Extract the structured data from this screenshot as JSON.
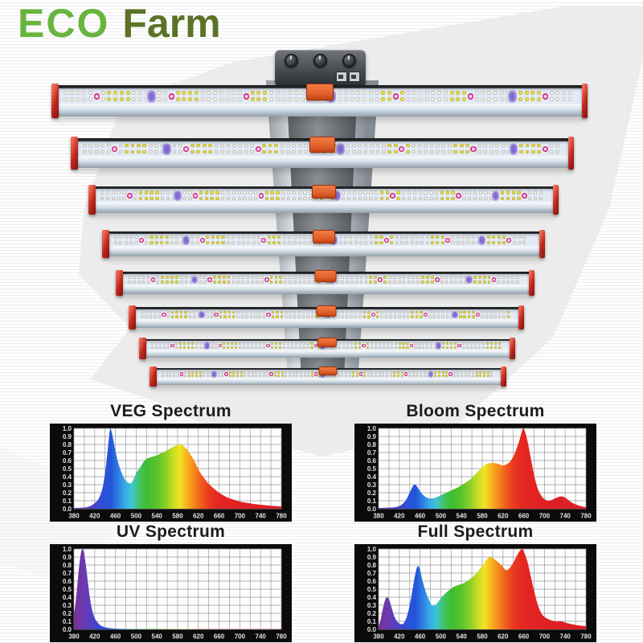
{
  "logo": {
    "eco": "ECO",
    "farm": "Farm",
    "eco_color": "#69b43e",
    "farm_color": "#5c7327"
  },
  "fixture": {
    "bar_count": 8,
    "colors": {
      "end_cap": "#c8342a",
      "connector": "#e2602a",
      "strip_background": "#e3eaf4",
      "led_white": "#faf9f3",
      "led_warm": "#e9e257",
      "led_red": "#e02e89",
      "led_uv": "#7f68cf",
      "heatsink_dark": "#2b2d30",
      "body_silver": "#c9d4de"
    }
  },
  "spectrum_colors": [
    [
      380,
      "#7b2f94"
    ],
    [
      400,
      "#6a3ab2"
    ],
    [
      418,
      "#4a41c6"
    ],
    [
      438,
      "#2a50d8"
    ],
    [
      452,
      "#2356d8"
    ],
    [
      465,
      "#2e7de2"
    ],
    [
      478,
      "#3aa8e8"
    ],
    [
      492,
      "#3cc6d2"
    ],
    [
      505,
      "#44c46a"
    ],
    [
      520,
      "#3fbc2f"
    ],
    [
      540,
      "#58c42c"
    ],
    [
      558,
      "#8fd028"
    ],
    [
      572,
      "#c8de24"
    ],
    [
      585,
      "#f2e322"
    ],
    [
      598,
      "#f6b11e"
    ],
    [
      612,
      "#f6871c"
    ],
    [
      626,
      "#f05a1e"
    ],
    [
      640,
      "#ea3a20"
    ],
    [
      658,
      "#e42722"
    ],
    [
      700,
      "#df2024"
    ],
    [
      780,
      "#da1f26"
    ]
  ],
  "chart_data": [
    {
      "type": "area",
      "title": "VEG Spectrum",
      "xlim": [
        380,
        780
      ],
      "ylim": [
        0,
        1.0
      ],
      "xticks": [
        380,
        420,
        460,
        500,
        540,
        580,
        620,
        660,
        700,
        740,
        780
      ],
      "yticks": [
        0.0,
        0.1,
        0.2,
        0.3,
        0.4,
        0.5,
        0.6,
        0.7,
        0.8,
        0.9,
        1.0
      ],
      "grid": true,
      "points": [
        [
          380,
          0.01
        ],
        [
          398,
          0.015
        ],
        [
          410,
          0.03
        ],
        [
          420,
          0.07
        ],
        [
          428,
          0.13
        ],
        [
          436,
          0.28
        ],
        [
          442,
          0.55
        ],
        [
          447,
          0.85
        ],
        [
          450,
          1.0
        ],
        [
          453,
          0.95
        ],
        [
          457,
          0.82
        ],
        [
          462,
          0.66
        ],
        [
          468,
          0.52
        ],
        [
          474,
          0.42
        ],
        [
          480,
          0.35
        ],
        [
          486,
          0.32
        ],
        [
          492,
          0.33
        ],
        [
          500,
          0.44
        ],
        [
          508,
          0.52
        ],
        [
          514,
          0.58
        ],
        [
          520,
          0.62
        ],
        [
          528,
          0.64
        ],
        [
          538,
          0.66
        ],
        [
          548,
          0.69
        ],
        [
          558,
          0.72
        ],
        [
          568,
          0.76
        ],
        [
          578,
          0.79
        ],
        [
          584,
          0.8
        ],
        [
          592,
          0.78
        ],
        [
          602,
          0.7
        ],
        [
          612,
          0.6
        ],
        [
          620,
          0.49
        ],
        [
          630,
          0.39
        ],
        [
          640,
          0.31
        ],
        [
          650,
          0.25
        ],
        [
          660,
          0.2
        ],
        [
          670,
          0.16
        ],
        [
          680,
          0.13
        ],
        [
          690,
          0.11
        ],
        [
          700,
          0.09
        ],
        [
          712,
          0.075
        ],
        [
          724,
          0.062
        ],
        [
          736,
          0.052
        ],
        [
          748,
          0.045
        ],
        [
          760,
          0.038
        ],
        [
          770,
          0.033
        ],
        [
          780,
          0.03
        ]
      ]
    },
    {
      "type": "area",
      "title": "Bloom Spectrum",
      "xlim": [
        380,
        780
      ],
      "ylim": [
        0,
        1.0
      ],
      "xticks": [
        380,
        420,
        460,
        500,
        540,
        580,
        620,
        660,
        700,
        740,
        780
      ],
      "yticks": [
        0.0,
        0.1,
        0.2,
        0.3,
        0.4,
        0.5,
        0.6,
        0.7,
        0.8,
        0.9,
        1.0
      ],
      "grid": true,
      "points": [
        [
          380,
          0.01
        ],
        [
          400,
          0.015
        ],
        [
          412,
          0.02
        ],
        [
          422,
          0.04
        ],
        [
          432,
          0.1
        ],
        [
          440,
          0.2
        ],
        [
          447,
          0.29
        ],
        [
          451,
          0.3
        ],
        [
          456,
          0.26
        ],
        [
          462,
          0.2
        ],
        [
          470,
          0.15
        ],
        [
          478,
          0.13
        ],
        [
          486,
          0.13
        ],
        [
          494,
          0.15
        ],
        [
          504,
          0.18
        ],
        [
          514,
          0.21
        ],
        [
          524,
          0.24
        ],
        [
          534,
          0.27
        ],
        [
          544,
          0.31
        ],
        [
          554,
          0.35
        ],
        [
          564,
          0.41
        ],
        [
          574,
          0.48
        ],
        [
          582,
          0.53
        ],
        [
          590,
          0.56
        ],
        [
          600,
          0.57
        ],
        [
          610,
          0.56
        ],
        [
          618,
          0.54
        ],
        [
          626,
          0.55
        ],
        [
          634,
          0.59
        ],
        [
          642,
          0.68
        ],
        [
          650,
          0.82
        ],
        [
          656,
          0.95
        ],
        [
          659,
          1.0
        ],
        [
          663,
          0.95
        ],
        [
          668,
          0.82
        ],
        [
          674,
          0.62
        ],
        [
          680,
          0.42
        ],
        [
          686,
          0.27
        ],
        [
          693,
          0.17
        ],
        [
          700,
          0.12
        ],
        [
          708,
          0.1
        ],
        [
          718,
          0.12
        ],
        [
          728,
          0.15
        ],
        [
          736,
          0.15
        ],
        [
          744,
          0.12
        ],
        [
          752,
          0.08
        ],
        [
          762,
          0.05
        ],
        [
          772,
          0.03
        ],
        [
          780,
          0.02
        ]
      ]
    },
    {
      "type": "area",
      "title": "UV Spectrum",
      "xlim": [
        380,
        780
      ],
      "ylim": [
        0,
        1.0
      ],
      "xticks": [
        380,
        420,
        460,
        500,
        540,
        580,
        620,
        660,
        700,
        740,
        780
      ],
      "yticks": [
        0.0,
        0.1,
        0.2,
        0.3,
        0.4,
        0.5,
        0.6,
        0.7,
        0.8,
        0.9,
        1.0
      ],
      "grid": true,
      "points": [
        [
          380,
          0.2
        ],
        [
          383,
          0.32
        ],
        [
          386,
          0.52
        ],
        [
          390,
          0.78
        ],
        [
          393,
          0.93
        ],
        [
          396,
          1.0
        ],
        [
          399,
          0.96
        ],
        [
          403,
          0.8
        ],
        [
          407,
          0.58
        ],
        [
          411,
          0.38
        ],
        [
          415,
          0.24
        ],
        [
          420,
          0.14
        ],
        [
          425,
          0.09
        ],
        [
          430,
          0.055
        ],
        [
          436,
          0.035
        ],
        [
          442,
          0.022
        ],
        [
          450,
          0.014
        ],
        [
          460,
          0.009
        ],
        [
          475,
          0.006
        ],
        [
          495,
          0.005
        ],
        [
          520,
          0.004
        ],
        [
          560,
          0.004
        ],
        [
          600,
          0.003
        ],
        [
          650,
          0.003
        ],
        [
          700,
          0.003
        ],
        [
          740,
          0.002
        ],
        [
          780,
          0.002
        ]
      ]
    },
    {
      "type": "area",
      "title": "Full Spectrum",
      "xlim": [
        380,
        780
      ],
      "ylim": [
        0,
        1.0
      ],
      "xticks": [
        380,
        420,
        460,
        500,
        540,
        580,
        620,
        660,
        700,
        740,
        780
      ],
      "yticks": [
        0.0,
        0.1,
        0.2,
        0.3,
        0.4,
        0.5,
        0.6,
        0.7,
        0.8,
        0.9,
        1.0
      ],
      "grid": true,
      "points": [
        [
          380,
          0.04
        ],
        [
          384,
          0.12
        ],
        [
          388,
          0.25
        ],
        [
          393,
          0.37
        ],
        [
          397,
          0.4
        ],
        [
          401,
          0.36
        ],
        [
          406,
          0.25
        ],
        [
          411,
          0.15
        ],
        [
          417,
          0.09
        ],
        [
          423,
          0.065
        ],
        [
          429,
          0.08
        ],
        [
          435,
          0.17
        ],
        [
          441,
          0.33
        ],
        [
          447,
          0.55
        ],
        [
          452,
          0.72
        ],
        [
          456,
          0.79
        ],
        [
          460,
          0.74
        ],
        [
          465,
          0.6
        ],
        [
          471,
          0.47
        ],
        [
          477,
          0.37
        ],
        [
          483,
          0.3
        ],
        [
          489,
          0.3
        ],
        [
          495,
          0.34
        ],
        [
          503,
          0.41
        ],
        [
          513,
          0.47
        ],
        [
          523,
          0.52
        ],
        [
          533,
          0.55
        ],
        [
          543,
          0.57
        ],
        [
          553,
          0.61
        ],
        [
          563,
          0.66
        ],
        [
          573,
          0.73
        ],
        [
          581,
          0.8
        ],
        [
          589,
          0.87
        ],
        [
          595,
          0.9
        ],
        [
          602,
          0.88
        ],
        [
          610,
          0.84
        ],
        [
          618,
          0.79
        ],
        [
          625,
          0.74
        ],
        [
          631,
          0.75
        ],
        [
          639,
          0.82
        ],
        [
          647,
          0.92
        ],
        [
          653,
          0.98
        ],
        [
          657,
          1.0
        ],
        [
          662,
          0.94
        ],
        [
          668,
          0.82
        ],
        [
          674,
          0.65
        ],
        [
          680,
          0.48
        ],
        [
          687,
          0.31
        ],
        [
          694,
          0.2
        ],
        [
          701,
          0.15
        ],
        [
          710,
          0.12
        ],
        [
          720,
          0.1
        ],
        [
          732,
          0.1
        ],
        [
          742,
          0.08
        ],
        [
          752,
          0.065
        ],
        [
          764,
          0.05
        ],
        [
          780,
          0.04
        ]
      ]
    }
  ]
}
